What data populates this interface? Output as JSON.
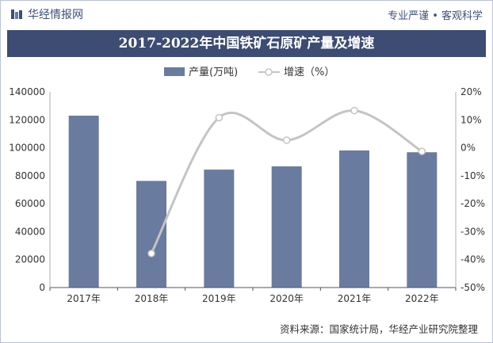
{
  "header": {
    "brand": "华经情报网",
    "slogan": "专业严谨 • 客观科学"
  },
  "chart_data": {
    "type": "bar",
    "title": "2017-2022年中国铁矿石原矿产量及增速",
    "categories": [
      "2017年",
      "2018年",
      "2019年",
      "2020年",
      "2021年",
      "2022年"
    ],
    "series": [
      {
        "name": "产量(万吨)",
        "kind": "bar",
        "axis": "left",
        "values": [
          123000,
          76300,
          84400,
          86700,
          98100,
          96800
        ]
      },
      {
        "name": "增速（%）",
        "kind": "line",
        "axis": "right",
        "values": [
          null,
          -37.8,
          10.8,
          2.7,
          13.3,
          -1.3
        ]
      }
    ],
    "y_left": {
      "min": 0,
      "max": 140000,
      "step": 20000,
      "ticks": [
        "0",
        "20000",
        "40000",
        "60000",
        "80000",
        "100000",
        "120000",
        "140000"
      ]
    },
    "y_right": {
      "min": -50,
      "max": 20,
      "step": 10,
      "ticks": [
        "-50%",
        "-40%",
        "-30%",
        "-20%",
        "-10%",
        "0%",
        "10%",
        "20%"
      ]
    },
    "legend_position": "top-center",
    "grid": false,
    "colors": {
      "bar": "#6a7ba0",
      "line": "#c4c4c4",
      "title_bg": "#3c4c72"
    }
  },
  "footer": {
    "source": "资料来源：国家统计局，华经产业研究院整理"
  }
}
